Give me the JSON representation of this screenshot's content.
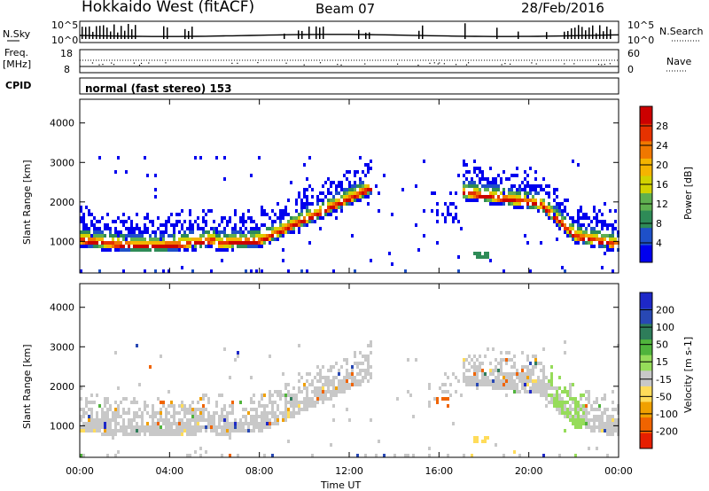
{
  "header": {
    "radar": "Hokkaido West (fitACF)",
    "beam": "Beam 07",
    "date": "28/Feb/2016"
  },
  "top_panels": {
    "nsky_label": "N.Sky",
    "nsky_ticks": [
      "10^5",
      "10^0"
    ],
    "nsearch_label": "N.Search",
    "nsearch_ticks": [
      "10^5",
      "10^0"
    ],
    "freq_label_1": "Freq.",
    "freq_label_2": "[MHz]",
    "freq_ticks": [
      "18",
      "8"
    ],
    "nave_label": "Nave",
    "nave_ticks": [
      "60",
      "0"
    ],
    "cpid_label": "CPID",
    "cpid_text": "normal (fast stereo) 153"
  },
  "chart_data": [
    {
      "type": "heatmap",
      "name": "power",
      "ylabel": "Slant Range [km]",
      "ylim": [
        200,
        4600
      ],
      "yticks": [
        "1000",
        "2000",
        "3000",
        "4000"
      ],
      "colorbar_label": "Power [dB]",
      "colorbar_ticks": [
        "28",
        "24",
        "20",
        "16",
        "12",
        "8",
        "4"
      ],
      "colors": [
        "#0000ee",
        "#1e50c8",
        "#2e8b57",
        "#5fb050",
        "#d2d200",
        "#f5b400",
        "#f07800",
        "#e63200",
        "#cc0000"
      ]
    },
    {
      "type": "heatmap",
      "name": "velocity",
      "ylabel": "Slant Range [km]",
      "ylim": [
        200,
        4600
      ],
      "yticks": [
        "1000",
        "2000",
        "3000",
        "4000"
      ],
      "colorbar_label": "Velocity [m s-1]",
      "colorbar_ticks": [
        "200",
        "100",
        "50",
        "15",
        "-15",
        "-50",
        "-100",
        "-200"
      ],
      "colors": [
        "#1e28c8",
        "#2848b4",
        "#2e7d5a",
        "#50b43c",
        "#96dc5a",
        "#c8c8c8",
        "#ffdc5a",
        "#f0a000",
        "#f06400",
        "#e61e00"
      ]
    }
  ],
  "x_axis": {
    "ticks": [
      "00:00",
      "04:00",
      "08:00",
      "12:00",
      "16:00",
      "20:00",
      "00:00"
    ],
    "label": "Time UT"
  }
}
